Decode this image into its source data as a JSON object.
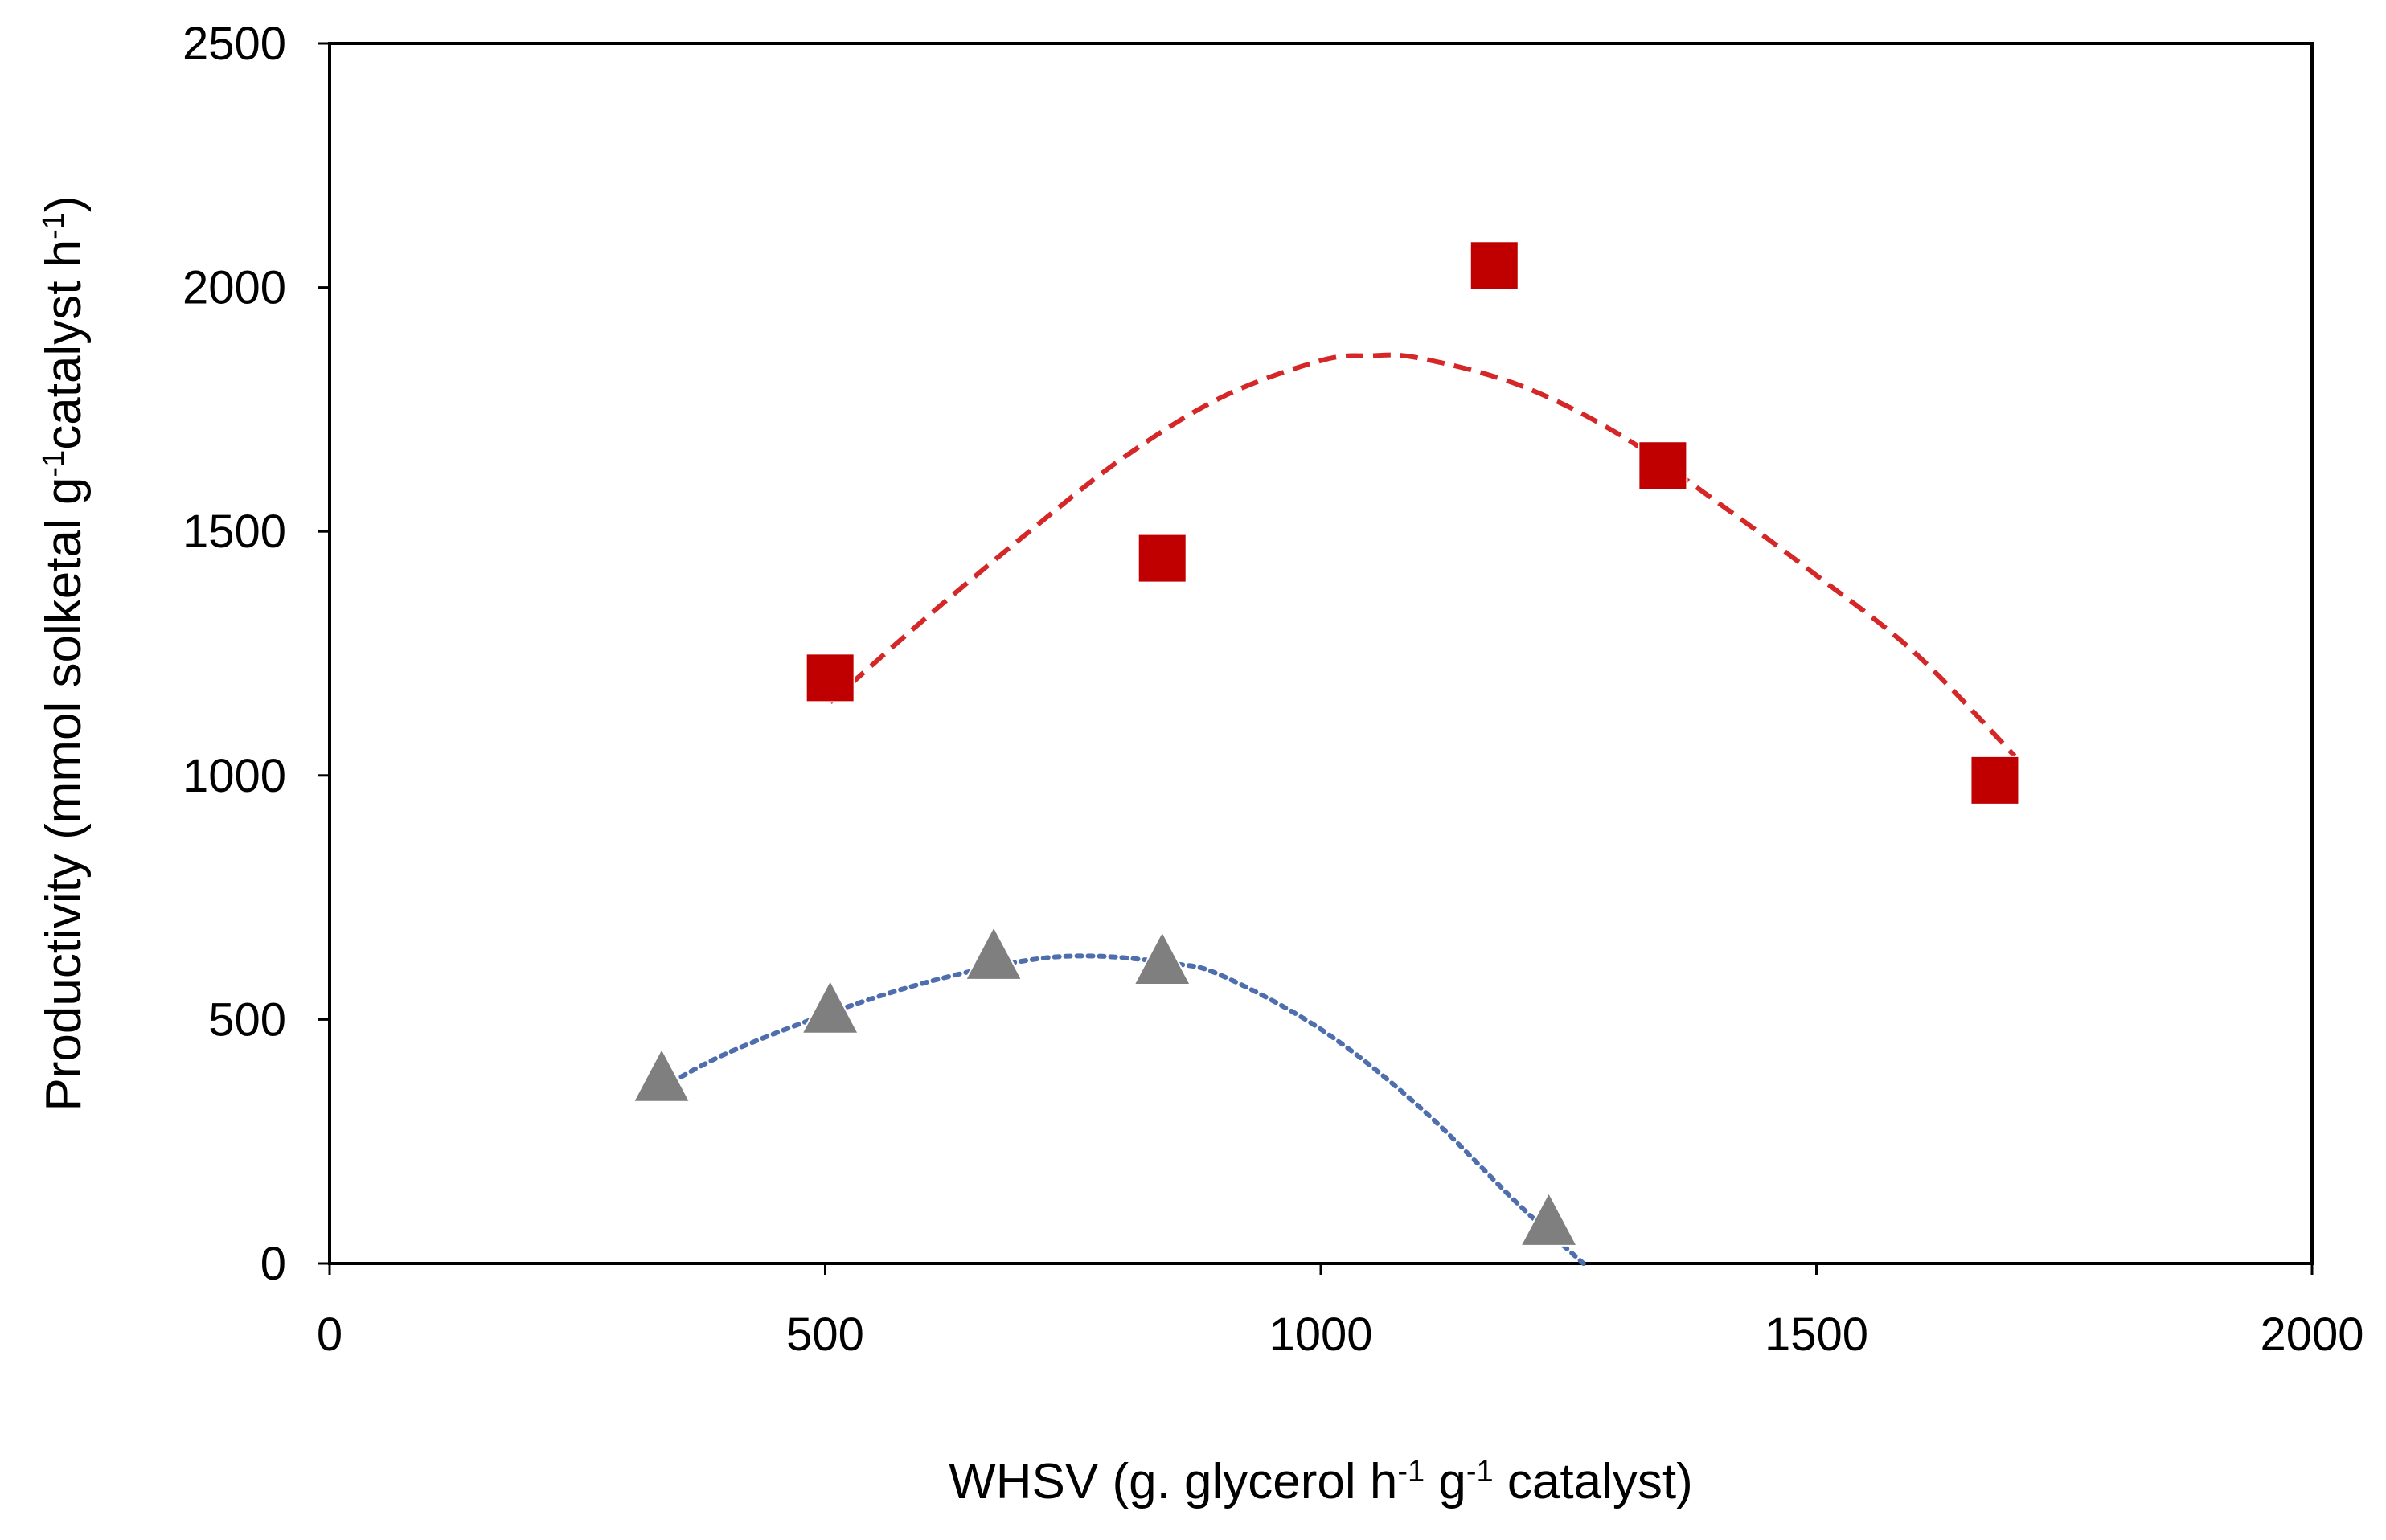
{
  "chart_data": {
    "type": "scatter",
    "title": "",
    "xlabel": {
      "parts": [
        {
          "text": "WHSV (g. glycerol h",
          "sup": false
        },
        {
          "text": "-1",
          "sup": true
        },
        {
          "text": " g",
          "sup": false
        },
        {
          "text": "-1",
          "sup": true
        },
        {
          "text": " catalyst)",
          "sup": false
        }
      ]
    },
    "ylabel": {
      "parts": [
        {
          "text": "Productivity (mmol solketal g",
          "sup": false
        },
        {
          "text": "-1",
          "sup": true
        },
        {
          "text": "catalyst h",
          "sup": false
        },
        {
          "text": "-1",
          "sup": true
        },
        {
          "text": ")",
          "sup": false
        }
      ]
    },
    "xlim": [
      0,
      2000
    ],
    "ylim": [
      0,
      2500
    ],
    "xticks": [
      0,
      500,
      1000,
      1500,
      2000
    ],
    "yticks": [
      0,
      500,
      1000,
      1500,
      2000,
      2500
    ],
    "xtick_labels": [
      "0",
      "500",
      "1000",
      "1500",
      "2000"
    ],
    "ytick_labels": [
      "0",
      "500",
      "1000",
      "1500",
      "2000",
      "2500"
    ],
    "grid": false,
    "legend": "none",
    "series": [
      {
        "name": "squares",
        "marker": "square",
        "color": "#C00000",
        "x": [
          505,
          840,
          1175,
          1345,
          1680
        ],
        "y": [
          1200,
          1445,
          2045,
          1635,
          990
        ],
        "trendline": {
          "style": "dashed",
          "color": "#D62728",
          "x": [
            505,
            600,
            700,
            800,
            900,
            1000,
            1050,
            1100,
            1200,
            1300,
            1400,
            1500,
            1600,
            1700
          ],
          "y": [
            1150,
            1320,
            1490,
            1650,
            1775,
            1850,
            1860,
            1855,
            1800,
            1700,
            1560,
            1410,
            1250,
            1040
          ]
        }
      },
      {
        "name": "triangles",
        "marker": "triangle",
        "color": "#7F7F7F",
        "x": [
          335,
          505,
          670,
          840,
          1230
        ],
        "y": [
          375,
          515,
          625,
          615,
          80
        ],
        "trendline": {
          "style": "dotted",
          "color": "#4F6EAD",
          "x": [
            335,
            400,
            500,
            600,
            700,
            770,
            850,
            900,
            1000,
            1100,
            1200,
            1265
          ],
          "y": [
            360,
            430,
            510,
            575,
            620,
            630,
            615,
            590,
            480,
            320,
            120,
            0
          ]
        }
      }
    ]
  }
}
